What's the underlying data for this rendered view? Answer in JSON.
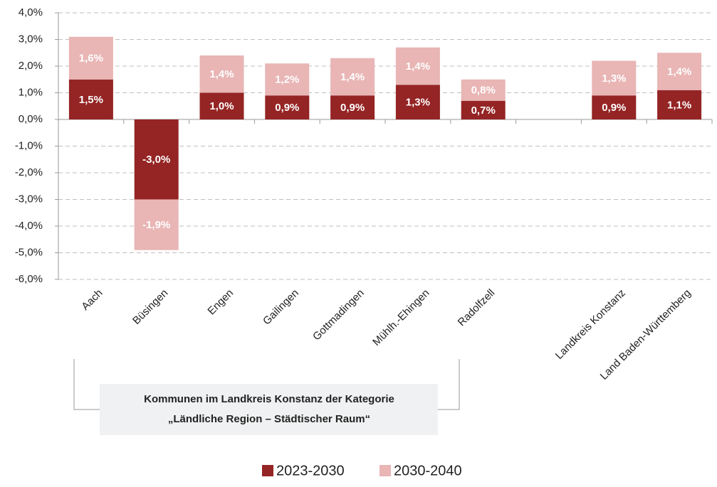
{
  "chart_data": {
    "type": "bar",
    "stacked": true,
    "categories": [
      "Aach",
      "Büsingen",
      "Engen",
      "Gailingen",
      "Gottmadingen",
      "Mühlh.-Ehingen",
      "Radolfzell",
      null,
      "Landkreis Konstanz",
      "Land Baden-Württemberg"
    ],
    "series": [
      {
        "name": "2023-2030",
        "color": "#952424",
        "values": [
          1.5,
          -3.0,
          1.0,
          0.9,
          0.9,
          1.3,
          0.7,
          null,
          0.9,
          1.1
        ],
        "value_labels": [
          "1,5%",
          "-3,0%",
          "1,0%",
          "0,9%",
          "0,9%",
          "1,3%",
          "0,7%",
          null,
          "0,9%",
          "1,1%"
        ]
      },
      {
        "name": "2030-2040",
        "color": "#e9b5b5",
        "values": [
          1.6,
          -1.9,
          1.4,
          1.2,
          1.4,
          1.4,
          0.8,
          null,
          1.3,
          1.4
        ],
        "value_labels": [
          "1,6%",
          "-1,9%",
          "1,4%",
          "1,2%",
          "1,4%",
          "1,4%",
          "0,8%",
          null,
          "1,3%",
          "1,4%"
        ]
      }
    ],
    "ylim": [
      -6,
      4
    ],
    "yticks": [
      {
        "value": 4,
        "label": "4,0%"
      },
      {
        "value": 3,
        "label": "3,0%"
      },
      {
        "value": 2,
        "label": "2,0%"
      },
      {
        "value": 1,
        "label": "1,0%"
      },
      {
        "value": 0,
        "label": "0,0%"
      },
      {
        "value": -1,
        "label": "-1,0%"
      },
      {
        "value": -2,
        "label": "-2,0%"
      },
      {
        "value": -3,
        "label": "-3,0%"
      },
      {
        "value": -4,
        "label": "-4,0%"
      },
      {
        "value": -5,
        "label": "-5,0%"
      },
      {
        "value": -6,
        "label": "-6,0%"
      }
    ],
    "grid": true,
    "legend": "bottom",
    "annotation": [
      "Kommunen im Landkreis Konstanz der Kategorie",
      "„Ländliche Region – Städtischer Raum“"
    ]
  }
}
